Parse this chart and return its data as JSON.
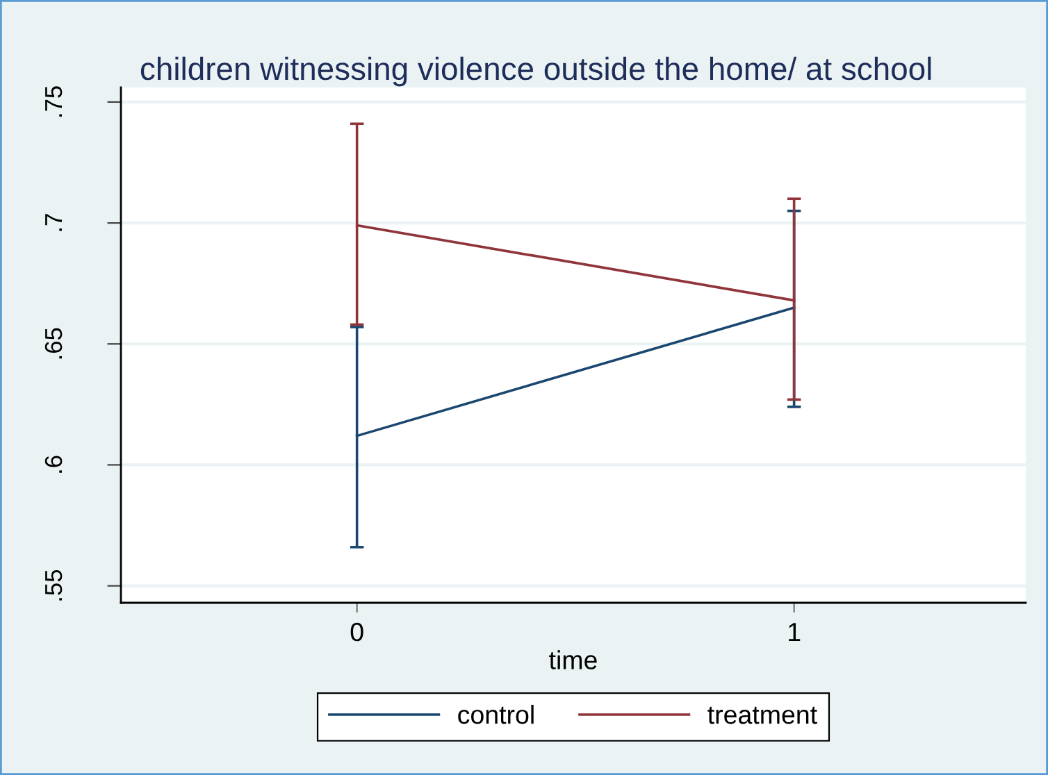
{
  "chart_data": {
    "type": "line",
    "title": "children witnessing violence outside the home/ at school",
    "xlabel": "time",
    "x": [
      0,
      1
    ],
    "series": [
      {
        "name": "control",
        "color": "#1a476f",
        "values": [
          0.612,
          0.665
        ],
        "errors": [
          [
            0.566,
            0.657
          ],
          [
            0.624,
            0.705
          ]
        ]
      },
      {
        "name": "treatment",
        "color": "#90353b",
        "values": [
          0.699,
          0.668
        ],
        "errors": [
          [
            0.658,
            0.741
          ],
          [
            0.627,
            0.71
          ]
        ]
      }
    ],
    "xlim": [
      -0.54,
      1.53
    ],
    "xticks": [
      0,
      1
    ],
    "ylim": [
      0.543,
      0.756
    ],
    "yticks": [
      {
        "value": 0.55,
        "label": ".55"
      },
      {
        "value": 0.6,
        "label": ".6"
      },
      {
        "value": 0.65,
        "label": ".65"
      },
      {
        "value": 0.7,
        "label": ".7"
      },
      {
        "value": 0.75,
        "label": ".75"
      }
    ],
    "grid": "y",
    "legend": "bottom",
    "marker": "none",
    "line_style": "solid"
  }
}
